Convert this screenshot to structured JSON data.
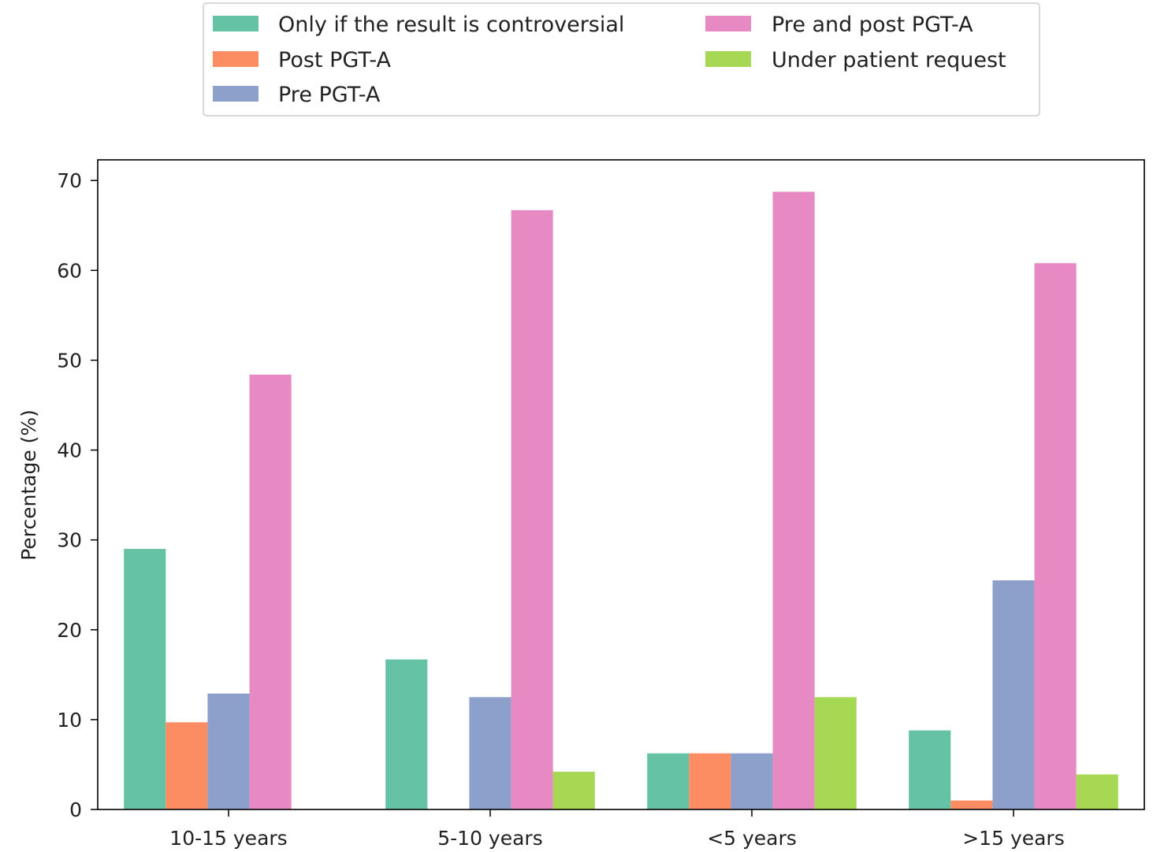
{
  "chart_data": {
    "type": "bar",
    "title": "",
    "xlabel": "",
    "ylabel": "Percentage (%)",
    "ylim": [
      0,
      72.3
    ],
    "yticks": [
      0,
      10,
      20,
      30,
      40,
      50,
      60,
      70
    ],
    "grid": false,
    "legend_position": "top-center",
    "categories": [
      "10-15 years",
      "5-10 years",
      "<5 years",
      ">15 years"
    ],
    "series": [
      {
        "name": "Only if the result is controversial",
        "color": "#66c2a5",
        "values": [
          29.0,
          16.7,
          6.25,
          8.8
        ]
      },
      {
        "name": "Post PGT-A",
        "color": "#fc8d62",
        "values": [
          9.7,
          0,
          6.25,
          1.0
        ]
      },
      {
        "name": "Pre PGT-A",
        "color": "#8da0cb",
        "values": [
          12.9,
          12.5,
          6.25,
          25.5
        ]
      },
      {
        "name": "Pre and post PGT-A",
        "color": "#e78ac3",
        "values": [
          48.4,
          66.7,
          68.75,
          60.8
        ]
      },
      {
        "name": "Under patient request",
        "color": "#a6d854",
        "values": [
          0,
          4.2,
          12.5,
          3.9
        ]
      }
    ]
  }
}
